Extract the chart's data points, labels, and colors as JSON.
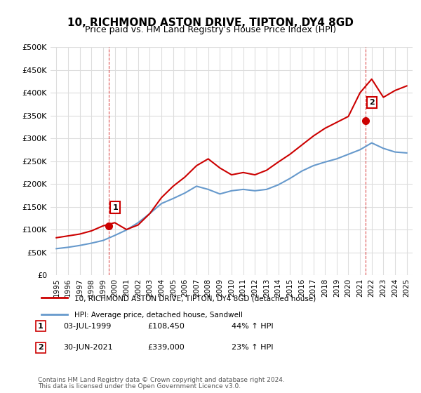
{
  "title": "10, RICHMOND ASTON DRIVE, TIPTON, DY4 8GD",
  "subtitle": "Price paid vs. HM Land Registry's House Price Index (HPI)",
  "ylabel": "",
  "ylim": [
    0,
    500000
  ],
  "yticks": [
    0,
    50000,
    100000,
    150000,
    200000,
    250000,
    300000,
    350000,
    400000,
    450000,
    500000
  ],
  "xlim_start": 1995.0,
  "xlim_end": 2025.5,
  "purchase1": {
    "date_x": 1999.5,
    "price": 108450,
    "label": "1",
    "pct": "44% ↑ HPI",
    "date_str": "03-JUL-1999",
    "price_str": "£108,450"
  },
  "purchase2": {
    "date_x": 2021.5,
    "price": 339000,
    "label": "2",
    "pct": "23% ↑ HPI",
    "date_str": "30-JUN-2021",
    "price_str": "£339,000"
  },
  "legend_line1": "10, RICHMOND ASTON DRIVE, TIPTON, DY4 8GD (detached house)",
  "legend_line2": "HPI: Average price, detached house, Sandwell",
  "footnote1": "Contains HM Land Registry data © Crown copyright and database right 2024.",
  "footnote2": "This data is licensed under the Open Government Licence v3.0.",
  "table_row1": "1    03-JUL-1999    £108,450    44% ↑ HPI",
  "table_row2": "2    30-JUN-2021    £339,000    23% ↑ HPI",
  "red_color": "#cc0000",
  "blue_color": "#6699cc",
  "dashed_red": "#cc0000",
  "background": "#ffffff",
  "grid_color": "#dddddd",
  "title_fontsize": 11,
  "subtitle_fontsize": 9,
  "tick_fontsize": 8,
  "hpi_years": [
    1995,
    1996,
    1997,
    1998,
    1999,
    2000,
    2001,
    2002,
    2003,
    2004,
    2005,
    2006,
    2007,
    2008,
    2009,
    2010,
    2011,
    2012,
    2013,
    2014,
    2015,
    2016,
    2017,
    2018,
    2019,
    2020,
    2021,
    2022,
    2023,
    2024,
    2025
  ],
  "hpi_values": [
    58000,
    61000,
    65000,
    70000,
    76000,
    87000,
    99000,
    115000,
    135000,
    157000,
    168000,
    180000,
    195000,
    188000,
    178000,
    185000,
    188000,
    185000,
    188000,
    198000,
    212000,
    228000,
    240000,
    248000,
    255000,
    265000,
    275000,
    290000,
    278000,
    270000,
    268000
  ],
  "red_years": [
    1995,
    1996,
    1997,
    1998,
    1999,
    2000,
    2001,
    2002,
    2003,
    2004,
    2005,
    2006,
    2007,
    2008,
    2009,
    2010,
    2011,
    2012,
    2013,
    2014,
    2015,
    2016,
    2017,
    2018,
    2019,
    2020,
    2021,
    2022,
    2023,
    2024,
    2025
  ],
  "red_values": [
    82000,
    86000,
    90000,
    97000,
    108000,
    115000,
    100000,
    110000,
    135000,
    170000,
    195000,
    215000,
    240000,
    255000,
    235000,
    220000,
    225000,
    220000,
    230000,
    248000,
    265000,
    285000,
    305000,
    322000,
    335000,
    348000,
    400000,
    430000,
    390000,
    405000,
    415000
  ],
  "xticks": [
    1995,
    1996,
    1997,
    1998,
    1999,
    2000,
    2001,
    2002,
    2003,
    2004,
    2005,
    2006,
    2007,
    2008,
    2009,
    2010,
    2011,
    2012,
    2013,
    2014,
    2015,
    2016,
    2017,
    2018,
    2019,
    2020,
    2021,
    2022,
    2023,
    2024,
    2025
  ]
}
